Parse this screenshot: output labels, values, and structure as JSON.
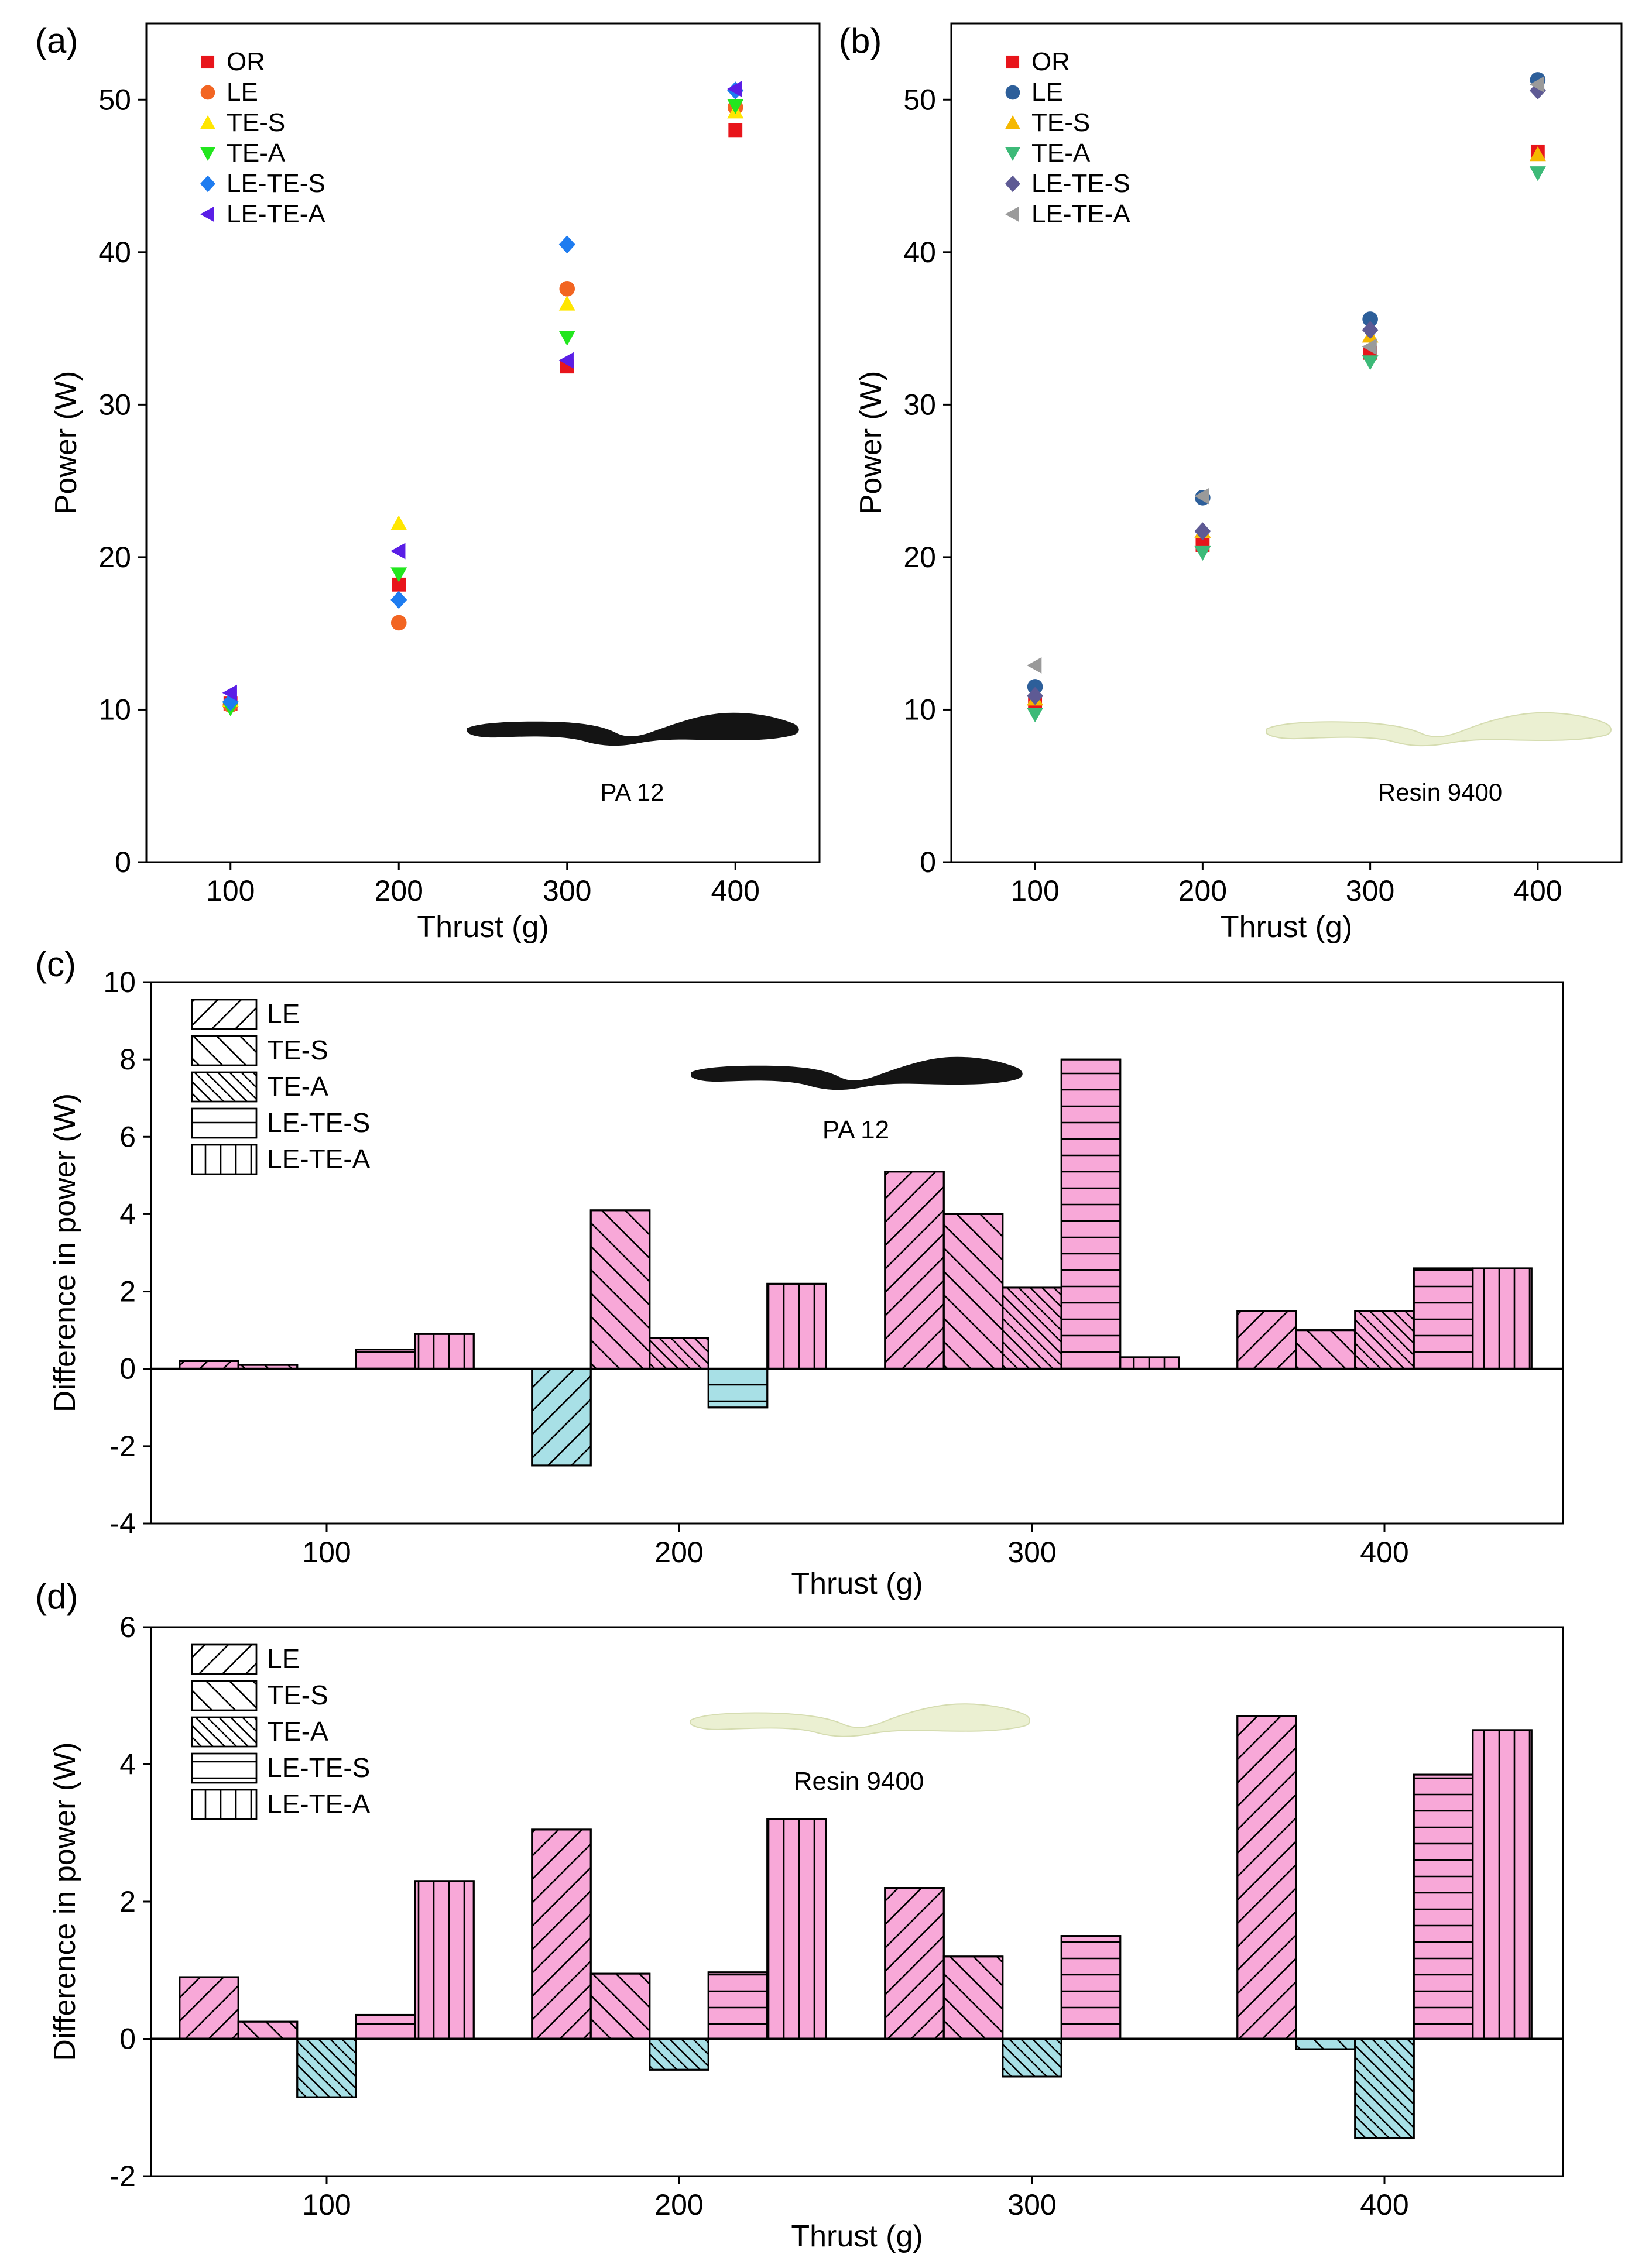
{
  "chart_data": [
    {
      "panel": "(a)",
      "type": "scatter",
      "title": "",
      "xlabel": "Thrust (g)",
      "ylabel": "Power (W)",
      "xlim": [
        50,
        450
      ],
      "ylim": [
        0,
        55
      ],
      "xticks": [
        100,
        200,
        300,
        400
      ],
      "yticks": [
        0,
        10,
        20,
        30,
        40,
        50
      ],
      "legend_position": "top-left",
      "inset_label": "PA 12",
      "inset_image": "black-propeller",
      "x": [
        100,
        200,
        300,
        400
      ],
      "series": [
        {
          "name": "OR",
          "marker": "square",
          "color": "#e8151b",
          "values": [
            10.4,
            18.2,
            32.5,
            48.0
          ]
        },
        {
          "name": "LE",
          "marker": "circle",
          "color": "#f26522",
          "values": [
            10.3,
            15.7,
            37.6,
            49.5
          ]
        },
        {
          "name": "TE-S",
          "marker": "triangle-up",
          "color": "#ffe600",
          "values": [
            10.6,
            22.2,
            36.6,
            49.2
          ]
        },
        {
          "name": "TE-A",
          "marker": "triangle-down",
          "color": "#22e61e",
          "values": [
            10.1,
            18.9,
            34.4,
            49.6
          ]
        },
        {
          "name": "LE-TE-S",
          "marker": "diamond",
          "color": "#1e7cf0",
          "values": [
            10.5,
            17.2,
            40.5,
            50.6
          ]
        },
        {
          "name": "LE-TE-A",
          "marker": "triangle-left",
          "color": "#5a1ee6",
          "values": [
            11.1,
            20.4,
            32.9,
            50.7
          ]
        }
      ]
    },
    {
      "panel": "(b)",
      "type": "scatter",
      "title": "",
      "xlabel": "Thrust (g)",
      "ylabel": "Power (W)",
      "xlim": [
        50,
        450
      ],
      "ylim": [
        0,
        55
      ],
      "xticks": [
        100,
        200,
        300,
        400
      ],
      "yticks": [
        0,
        10,
        20,
        30,
        40,
        50
      ],
      "legend_position": "top-left",
      "inset_label": "Resin 9400",
      "inset_image": "pale-propeller",
      "x": [
        100,
        200,
        300,
        400
      ],
      "series": [
        {
          "name": "OR",
          "marker": "square",
          "color": "#e8151b",
          "values": [
            10.5,
            20.8,
            33.4,
            46.6
          ]
        },
        {
          "name": "LE",
          "marker": "circle",
          "color": "#2d5f9a",
          "values": [
            11.5,
            23.9,
            35.6,
            51.3
          ]
        },
        {
          "name": "TE-S",
          "marker": "triangle-up",
          "color": "#f5b800",
          "values": [
            10.7,
            21.7,
            34.5,
            46.4
          ]
        },
        {
          "name": "TE-A",
          "marker": "triangle-down",
          "color": "#3dba78",
          "values": [
            9.7,
            20.3,
            32.8,
            45.2
          ]
        },
        {
          "name": "LE-TE-S",
          "marker": "diamond",
          "color": "#5e5a94",
          "values": [
            10.9,
            21.7,
            34.9,
            50.6
          ]
        },
        {
          "name": "LE-TE-A",
          "marker": "triangle-left",
          "color": "#9a9a9a",
          "values": [
            12.9,
            24.0,
            33.8,
            51.0
          ]
        }
      ]
    },
    {
      "panel": "(c)",
      "type": "bar",
      "title": "",
      "xlabel": "Thrust (g)",
      "ylabel": "Difference in power (W)",
      "ylim": [
        -4,
        10
      ],
      "yticks": [
        -4,
        -2,
        0,
        2,
        4,
        6,
        8,
        10
      ],
      "categories": [
        "100",
        "200",
        "300",
        "400"
      ],
      "legend_position": "top-left",
      "inset_label": "PA 12",
      "inset_image": "black-propeller",
      "positive_color": "#f8a8d8",
      "negative_color": "#a8e0e6",
      "series": [
        {
          "name": "LE",
          "pattern": "diag-up",
          "values": [
            0.2,
            -2.5,
            5.1,
            1.5
          ]
        },
        {
          "name": "TE-S",
          "pattern": "diag-down",
          "values": [
            0.1,
            4.1,
            4.0,
            1.0
          ]
        },
        {
          "name": "TE-A",
          "pattern": "diag-down-dense",
          "values": [
            0.0,
            0.8,
            2.1,
            1.5
          ]
        },
        {
          "name": "LE-TE-S",
          "pattern": "horizontal",
          "values": [
            0.5,
            -1.0,
            8.0,
            2.6
          ]
        },
        {
          "name": "LE-TE-A",
          "pattern": "vertical",
          "values": [
            0.9,
            2.2,
            0.3,
            2.6
          ]
        }
      ]
    },
    {
      "panel": "(d)",
      "type": "bar",
      "title": "",
      "xlabel": "Thrust (g)",
      "ylabel": "Difference in power (W)",
      "ylim": [
        -2,
        6
      ],
      "yticks": [
        -2,
        0,
        2,
        4,
        6
      ],
      "categories": [
        "100",
        "200",
        "300",
        "400"
      ],
      "legend_position": "top-left",
      "inset_label": "Resin 9400",
      "inset_image": "pale-propeller",
      "positive_color": "#f8a8d8",
      "negative_color": "#a8e0e6",
      "series": [
        {
          "name": "LE",
          "pattern": "diag-up",
          "values": [
            0.9,
            3.05,
            2.2,
            4.7
          ]
        },
        {
          "name": "TE-S",
          "pattern": "diag-down",
          "values": [
            0.25,
            0.95,
            1.2,
            -0.15
          ]
        },
        {
          "name": "TE-A",
          "pattern": "diag-down-dense",
          "values": [
            -0.85,
            -0.45,
            -0.55,
            -1.45
          ]
        },
        {
          "name": "LE-TE-S",
          "pattern": "horizontal",
          "values": [
            0.35,
            0.97,
            1.5,
            3.85
          ]
        },
        {
          "name": "LE-TE-A",
          "pattern": "vertical",
          "values": [
            2.3,
            3.2,
            0.0,
            4.5
          ]
        }
      ]
    }
  ]
}
